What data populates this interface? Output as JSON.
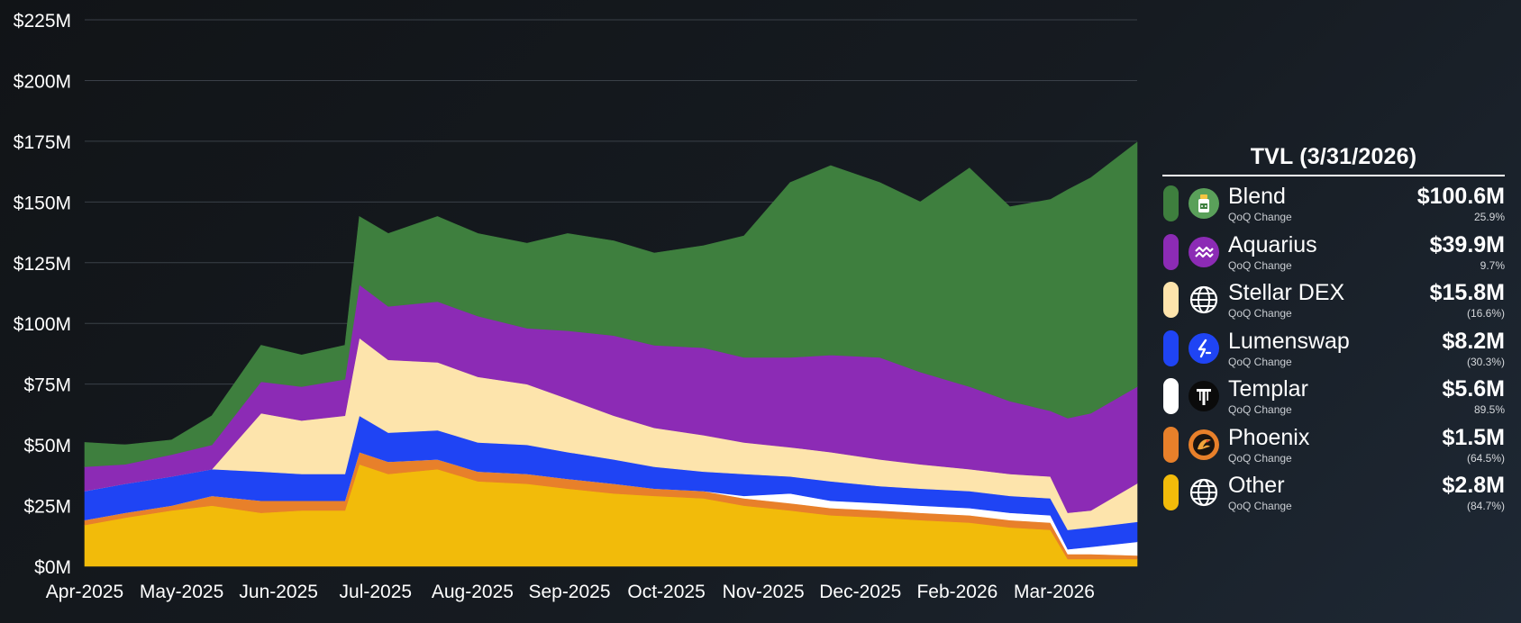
{
  "chart_data": {
    "type": "area",
    "stacked": true,
    "y_axis": {
      "min": 0,
      "max": 225,
      "unit": "$M",
      "ticks": [
        0,
        25,
        50,
        75,
        100,
        125,
        150,
        175,
        200,
        225
      ],
      "tick_labels": [
        "$0M",
        "$25M",
        "$50M",
        "$75M",
        "$100M",
        "$125M",
        "$150M",
        "$175M",
        "$200M",
        "$225M"
      ]
    },
    "x_axis": {
      "start": "2025-04-01",
      "end": "2026-03-31",
      "tick_labels": [
        "Apr-2025",
        "May-2025",
        "Jun-2025",
        "Jul-2025",
        "Aug-2025",
        "Sep-2025",
        "Oct-2025",
        "Nov-2025",
        "Dec-2025",
        "Feb-2026",
        "Mar-2026"
      ]
    },
    "grid": "horizontal",
    "legend_position": "right",
    "dates": [
      "2025-04-01",
      "2025-04-15",
      "2025-05-01",
      "2025-05-15",
      "2025-06-01",
      "2025-06-15",
      "2025-06-30",
      "2025-07-05",
      "2025-07-15",
      "2025-08-01",
      "2025-08-15",
      "2025-09-01",
      "2025-09-15",
      "2025-10-01",
      "2025-10-15",
      "2025-11-01",
      "2025-11-15",
      "2025-12-01",
      "2025-12-15",
      "2026-01-01",
      "2026-01-15",
      "2026-02-01",
      "2026-02-15",
      "2026-03-01",
      "2026-03-07",
      "2026-03-15",
      "2026-03-31"
    ],
    "series": [
      {
        "name": "Other",
        "color": "#f2bb0a",
        "values": [
          17,
          20,
          23,
          25,
          22,
          23,
          23,
          42,
          38,
          40,
          35,
          34,
          32,
          30,
          29,
          28,
          25,
          23,
          21,
          20,
          19,
          18,
          16,
          15,
          3,
          3,
          3
        ]
      },
      {
        "name": "Phoenix",
        "color": "#e8802a",
        "values": [
          2,
          2,
          2,
          4,
          5,
          4,
          4,
          5,
          5,
          4,
          4,
          4,
          4,
          4,
          3,
          3,
          3,
          3,
          3,
          3,
          3,
          3,
          3,
          3,
          2,
          2,
          1.5
        ]
      },
      {
        "name": "Templar",
        "color": "#ffffff",
        "values": [
          0,
          0,
          0,
          0,
          0,
          0,
          0,
          0,
          0,
          0,
          0,
          0,
          0,
          0,
          0,
          0,
          1,
          4,
          3,
          3,
          3,
          3,
          3,
          3,
          2,
          3,
          5.6
        ]
      },
      {
        "name": "Lumenswap",
        "color": "#1f44f4",
        "values": [
          12,
          12,
          12,
          11,
          12,
          11,
          11,
          15,
          12,
          12,
          12,
          12,
          11,
          10,
          9,
          8,
          9,
          7,
          8,
          7,
          7,
          7,
          7,
          7,
          8,
          8,
          8.2
        ]
      },
      {
        "name": "Stellar DEX",
        "color": "#fde4ac",
        "values": [
          0,
          0,
          0,
          0,
          24,
          22,
          24,
          32,
          30,
          28,
          27,
          25,
          22,
          18,
          16,
          15,
          13,
          12,
          12,
          11,
          10,
          9,
          9,
          9,
          7,
          7,
          15.8
        ]
      },
      {
        "name": "Aquarius",
        "color": "#8c2bb5",
        "values": [
          10,
          8,
          9,
          10,
          13,
          14,
          15,
          22,
          22,
          25,
          25,
          23,
          28,
          33,
          34,
          36,
          35,
          37,
          40,
          42,
          38,
          34,
          30,
          27,
          39,
          40,
          39.9
        ]
      },
      {
        "name": "Blend",
        "color": "#3e7f3e",
        "values": [
          10,
          8,
          6,
          12,
          15,
          13,
          14,
          28,
          30,
          35,
          34,
          35,
          40,
          39,
          38,
          42,
          50,
          72,
          78,
          72,
          70,
          90,
          80,
          87,
          94,
          97,
          100.6
        ]
      }
    ]
  },
  "legend": {
    "title": "TVL (3/31/2026)",
    "sublabel": "QoQ Change",
    "items": [
      {
        "name": "Blend",
        "value": "$100.6M",
        "change": "25.9%",
        "color": "#3e7f3e",
        "icon": "blend-logo-icon"
      },
      {
        "name": "Aquarius",
        "value": "$39.9M",
        "change": "9.7%",
        "color": "#8c2bb5",
        "icon": "aquarius-logo-icon"
      },
      {
        "name": "Stellar DEX",
        "value": "$15.8M",
        "change": "(16.6%)",
        "color": "#fde4ac",
        "icon": "globe-icon"
      },
      {
        "name": "Lumenswap",
        "value": "$8.2M",
        "change": "(30.3%)",
        "color": "#1f44f4",
        "icon": "lumenswap-logo-icon"
      },
      {
        "name": "Templar",
        "value": "$5.6M",
        "change": "89.5%",
        "color": "#ffffff",
        "icon": "templar-logo-icon"
      },
      {
        "name": "Phoenix",
        "value": "$1.5M",
        "change": "(64.5%)",
        "color": "#e8802a",
        "icon": "phoenix-logo-icon"
      },
      {
        "name": "Other",
        "value": "$2.8M",
        "change": "(84.7%)",
        "color": "#f2bb0a",
        "icon": "globe-icon"
      }
    ]
  }
}
